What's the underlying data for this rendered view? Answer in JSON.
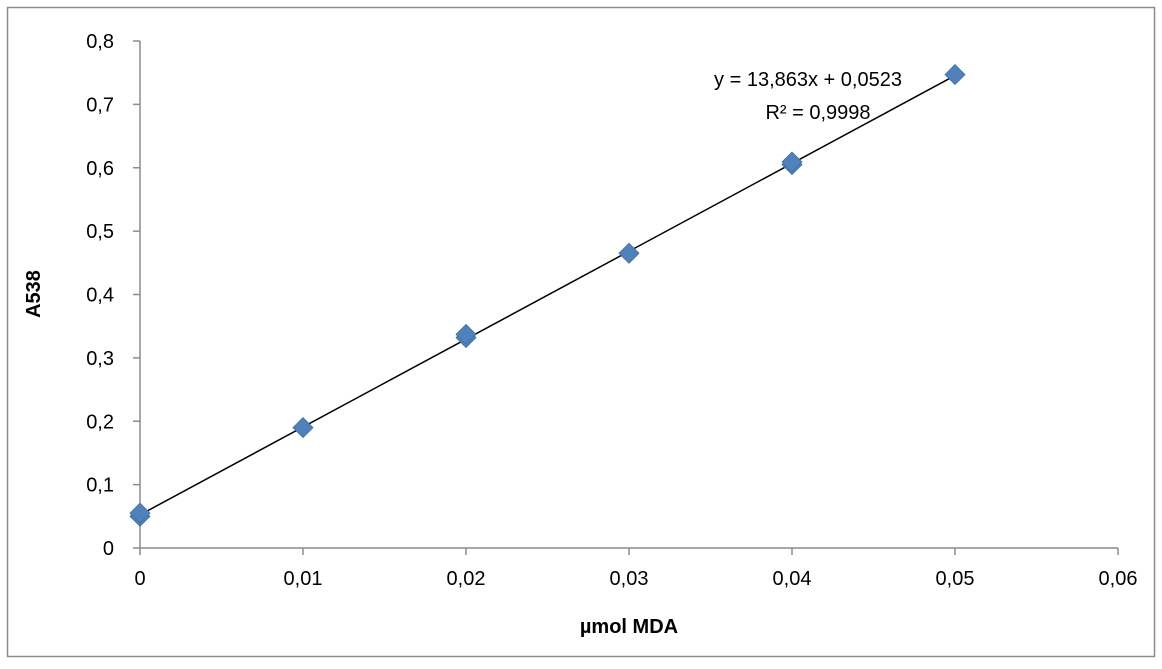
{
  "chart_data": {
    "type": "scatter",
    "title": "",
    "xlabel": "µmol MDA",
    "ylabel": "A538",
    "xlim": [
      0,
      0.06
    ],
    "ylim": [
      0,
      0.8
    ],
    "x_ticks": [
      "0",
      "0,01",
      "0,02",
      "0,03",
      "0,04",
      "0,05",
      "0,06"
    ],
    "y_ticks": [
      "0",
      "0,1",
      "0,2",
      "0,3",
      "0,4",
      "0,5",
      "0,6",
      "0,7",
      "0,8"
    ],
    "grid": false,
    "legend": "none",
    "series": [
      {
        "points": [
          {
            "x": 0,
            "y": 0.05
          },
          {
            "x": 0,
            "y": 0.055
          },
          {
            "x": 0.01,
            "y": 0.19
          },
          {
            "x": 0.02,
            "y": 0.332
          },
          {
            "x": 0.02,
            "y": 0.337
          },
          {
            "x": 0.03,
            "y": 0.465
          },
          {
            "x": 0.04,
            "y": 0.605
          },
          {
            "x": 0.04,
            "y": 0.609
          },
          {
            "x": 0.05,
            "y": 0.747
          }
        ],
        "color": "#4f81bd",
        "marker": "diamond"
      }
    ],
    "trendline": {
      "type": "linear",
      "slope": 13.863,
      "intercept": 0.0523,
      "x_range": [
        0,
        0.05
      ],
      "color": "#000000",
      "equation_label": "y = 13,863x + 0,0523",
      "r2_label": "R² = 0,9998"
    }
  }
}
